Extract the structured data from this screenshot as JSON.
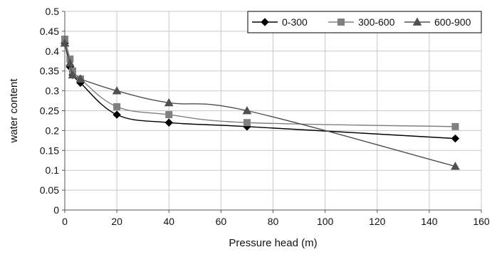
{
  "chart_data": {
    "type": "line",
    "title": "",
    "xlabel": "Pressure head (m)",
    "ylabel": "water content",
    "xlim": [
      0,
      160
    ],
    "ylim": [
      0,
      0.5
    ],
    "x_ticks": [
      0,
      20,
      40,
      60,
      80,
      100,
      120,
      140,
      160
    ],
    "x_tick_labels": [
      "0",
      "20",
      "40",
      "60",
      "80",
      "100",
      "120",
      "140",
      "160"
    ],
    "y_ticks": [
      0,
      0.05,
      0.1,
      0.15,
      0.2,
      0.25,
      0.3,
      0.35,
      0.4,
      0.45,
      0.5
    ],
    "y_tick_labels": [
      "0",
      "0.05",
      "0.1",
      "0.15",
      "0.2",
      "0.25",
      "0.3",
      "0.35",
      "0.4",
      "0.45",
      "0.5"
    ],
    "grid": true,
    "legend_position": "top-right",
    "series": [
      {
        "name": "0-300",
        "marker": "diamond",
        "color": "#000000",
        "points": [
          [
            0,
            0.42
          ],
          [
            2,
            0.36
          ],
          [
            3,
            0.34
          ],
          [
            6,
            0.32
          ],
          [
            20,
            0.24
          ],
          [
            40,
            0.22
          ],
          [
            70,
            0.21
          ],
          [
            150,
            0.18
          ]
        ]
      },
      {
        "name": "300-600",
        "marker": "square",
        "color": "#808080",
        "points": [
          [
            0,
            0.43
          ],
          [
            2,
            0.38
          ],
          [
            3,
            0.35
          ],
          [
            6,
            0.33
          ],
          [
            20,
            0.26
          ],
          [
            40,
            0.24
          ],
          [
            70,
            0.22
          ],
          [
            150,
            0.21
          ]
        ]
      },
      {
        "name": "600-900",
        "marker": "triangle",
        "color": "#505050",
        "points": [
          [
            0,
            0.42
          ],
          [
            2,
            0.37
          ],
          [
            3,
            0.34
          ],
          [
            6,
            0.33
          ],
          [
            20,
            0.3
          ],
          [
            40,
            0.27
          ],
          [
            70,
            0.25
          ],
          [
            150,
            0.11
          ]
        ]
      }
    ]
  }
}
